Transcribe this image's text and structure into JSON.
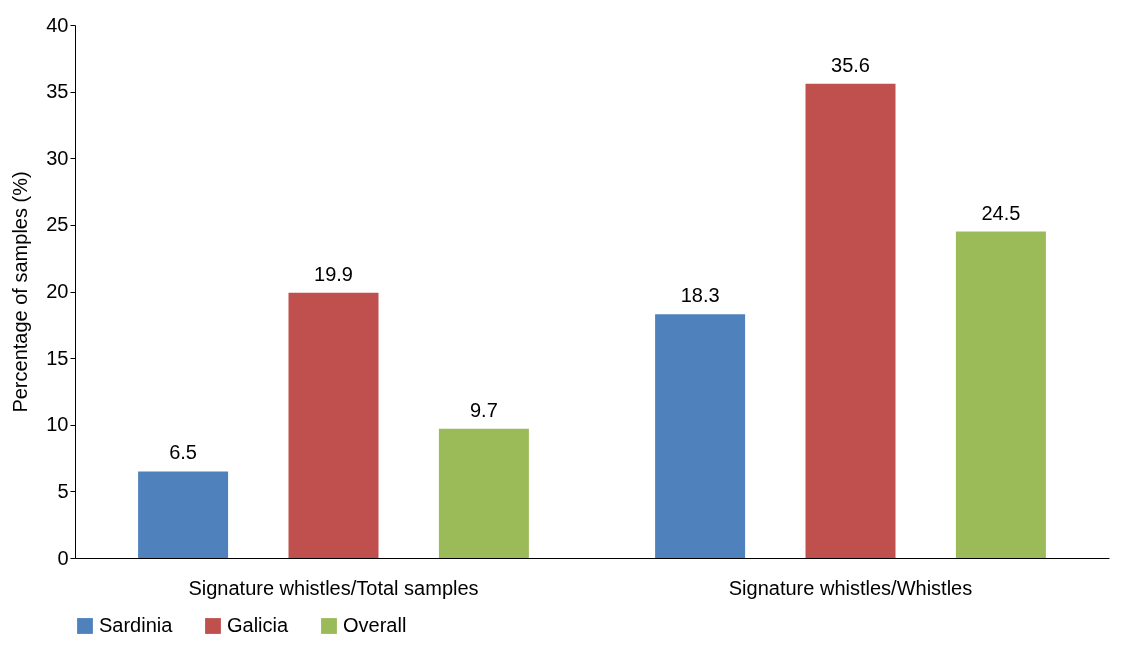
{
  "chart_data": {
    "type": "bar",
    "ylabel": "Percentage of samples (%)",
    "categories": [
      "Signature whistles/Total samples",
      "Signature whistles/Whistles"
    ],
    "series": [
      {
        "name": "Sardinia",
        "color": "#4f81bd",
        "values": [
          6.5,
          18.3
        ]
      },
      {
        "name": "Galicia",
        "color": "#c0504d",
        "values": [
          19.9,
          35.6
        ]
      },
      {
        "name": "Overall",
        "color": "#9bbb59",
        "values": [
          9.7,
          24.5
        ]
      }
    ],
    "ylim": [
      0,
      40
    ],
    "yticks": [
      0,
      5,
      10,
      15,
      20,
      25,
      30,
      35,
      40
    ],
    "data_labels": true,
    "grid": false,
    "legend": "bottom"
  }
}
